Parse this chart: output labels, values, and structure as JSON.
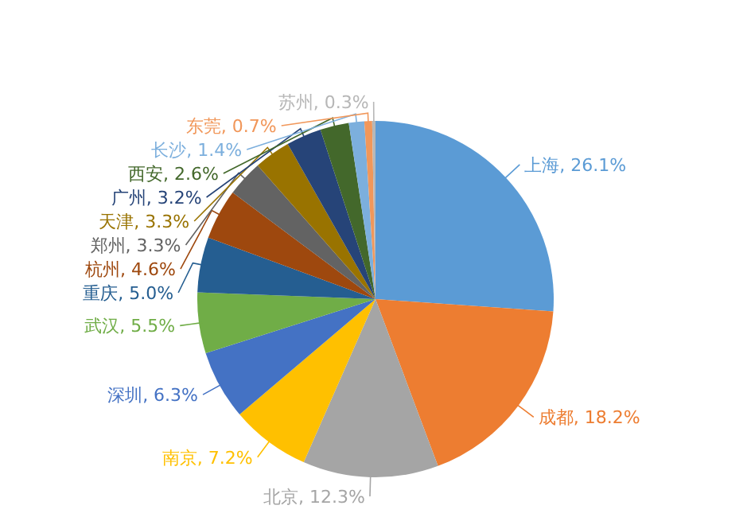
{
  "chart_data": {
    "type": "pie",
    "categories": [
      "上海",
      "成都",
      "北京",
      "南京",
      "深圳",
      "武汉",
      "重庆",
      "杭州",
      "郑州",
      "天津",
      "广州",
      "西安",
      "长沙",
      "东莞",
      "苏州"
    ],
    "values": [
      26.1,
      18.2,
      12.3,
      7.2,
      6.3,
      5.5,
      5.0,
      4.6,
      3.3,
      3.3,
      3.2,
      2.6,
      1.4,
      0.7,
      0.3
    ],
    "value_labels": [
      "26.1%",
      "18.2%",
      "12.3%",
      "7.2%",
      "6.3%",
      "5.5%",
      "5.0%",
      "4.6%",
      "3.3%",
      "3.3%",
      "3.2%",
      "2.6%",
      "1.4%",
      "0.7%",
      "0.3%"
    ],
    "colors": [
      "#5b9bd5",
      "#ed7d31",
      "#a5a5a5",
      "#ffc000",
      "#4472c4",
      "#70ad47",
      "#255e91",
      "#9e480e",
      "#636363",
      "#997300",
      "#264478",
      "#43682b",
      "#7cafdd",
      "#f1975a",
      "#b7b7b7"
    ]
  }
}
